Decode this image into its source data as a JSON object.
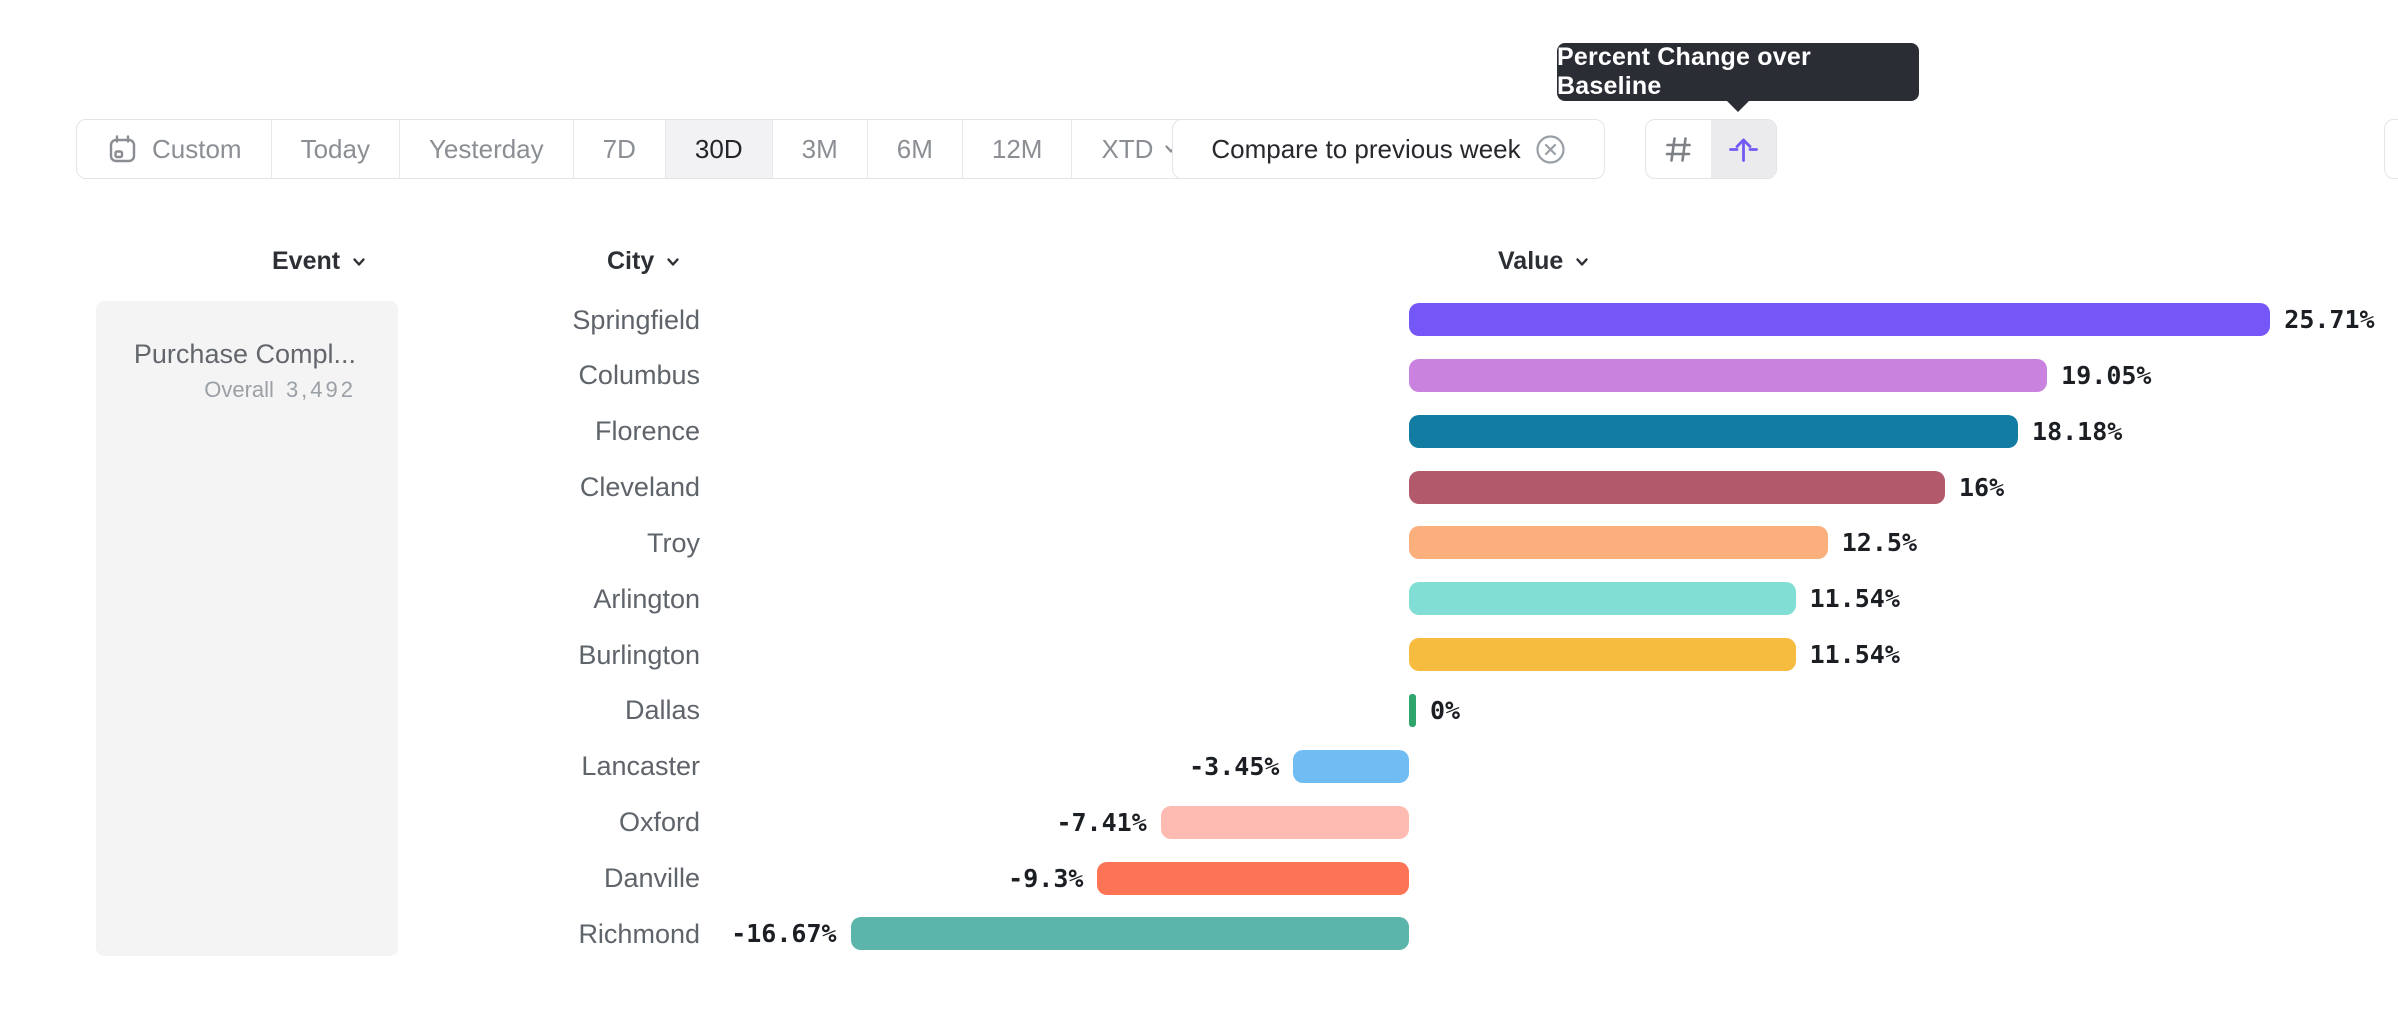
{
  "tooltip": {
    "text": "Percent Change over Baseline"
  },
  "toolbar": {
    "date_ranges": [
      {
        "label": "Custom",
        "icon": "calendar",
        "selected": false
      },
      {
        "label": "Today",
        "selected": false
      },
      {
        "label": "Yesterday",
        "selected": false
      },
      {
        "label": "7D",
        "selected": false
      },
      {
        "label": "30D",
        "selected": true
      },
      {
        "label": "3M",
        "selected": false
      },
      {
        "label": "6M",
        "selected": false
      },
      {
        "label": "12M",
        "selected": false
      },
      {
        "label": "XTD",
        "chevron": true,
        "selected": false
      }
    ],
    "compare_chip": {
      "label": "Compare to previous week",
      "icon": "x-circle"
    },
    "view_toggles": [
      {
        "icon": "hash-grid",
        "selected": false
      },
      {
        "icon": "baseline-arrow",
        "selected": true,
        "tooltip": "Percent Change over Baseline"
      }
    ]
  },
  "table": {
    "columns": [
      {
        "label": "Event"
      },
      {
        "label": "City"
      },
      {
        "label": "Value"
      }
    ],
    "event_panel": {
      "event_name": "Purchase Compl...",
      "overall_label": "Overall",
      "overall_value": "3,492"
    }
  },
  "chart_data": {
    "type": "bar",
    "orientation": "horizontal",
    "series_name": "Percent Change over Baseline",
    "baseline": 0,
    "xlim": [
      -20,
      30
    ],
    "categories": [
      "Springfield",
      "Columbus",
      "Florence",
      "Cleveland",
      "Troy",
      "Arlington",
      "Burlington",
      "Dallas",
      "Lancaster",
      "Oxford",
      "Danville",
      "Richmond"
    ],
    "values": [
      25.71,
      19.05,
      18.18,
      16,
      12.5,
      11.54,
      11.54,
      0,
      -3.45,
      -7.41,
      -9.3,
      -16.67
    ],
    "value_labels": [
      "25.71%",
      "19.05%",
      "18.18%",
      "16%",
      "12.5%",
      "11.54%",
      "11.54%",
      "0%",
      "-3.45%",
      "-7.41%",
      "-9.3%",
      "-16.67%"
    ],
    "bar_colors": [
      "#7557f8",
      "#c983de",
      "#127ca3",
      "#b2596c",
      "#fbaf7d",
      "#80ded5",
      "#f6bc3f",
      "#2fa56b",
      "#70bdf3",
      "#fdbbb2",
      "#fc7355",
      "#5bb5aa"
    ]
  },
  "colors": {
    "accent_purple": "#7459f2",
    "tooltip_bg": "#2b2d35",
    "selected_cell_bg": "#f2f2f4",
    "panel_bg": "#f4f4f5"
  }
}
